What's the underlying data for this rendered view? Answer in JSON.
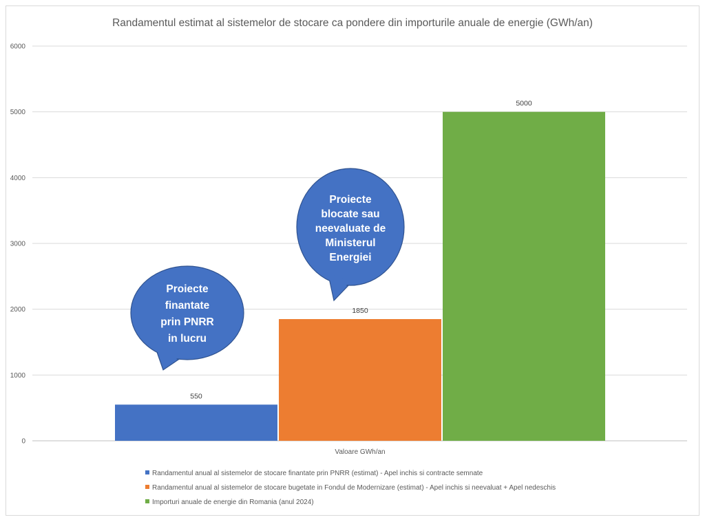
{
  "chart_data": {
    "type": "bar",
    "title": "Randamentul estimat al sistemelor de stocare ca pondere din importurile anuale de energie (GWh/an)",
    "categories": [
      "Valoare GWh/an"
    ],
    "series": [
      {
        "name": "Randamentul anual al sistemelor de stocare finantate prin PNRR (estimat) - Apel inchis si contracte semnate",
        "values": [
          550
        ],
        "color": "#4472c4"
      },
      {
        "name": "Randamentul anual al sistemelor de stocare bugetate in Fondul de Modernizare (estimat) - Apel inchis si neevaluat + Apel nedeschis",
        "values": [
          1850
        ],
        "color": "#ed7d31"
      },
      {
        "name": "Importuri anuale de energie din Romania (anul 2024)",
        "values": [
          5000
        ],
        "color": "#70ad47"
      }
    ],
    "ylim": [
      0,
      6000
    ],
    "yticks": [
      0,
      1000,
      2000,
      3000,
      4000,
      5000,
      6000
    ],
    "grid": true,
    "legend": "bottom",
    "callouts": [
      {
        "text": [
          "Proiecte",
          "finantate",
          "prin PNRR",
          "in lucru"
        ],
        "color": "#4472c4"
      },
      {
        "text": [
          "Proiecte",
          "blocate sau",
          "neevaluate de",
          "Ministerul",
          "Energiei"
        ],
        "color": "#4472c4"
      }
    ]
  }
}
